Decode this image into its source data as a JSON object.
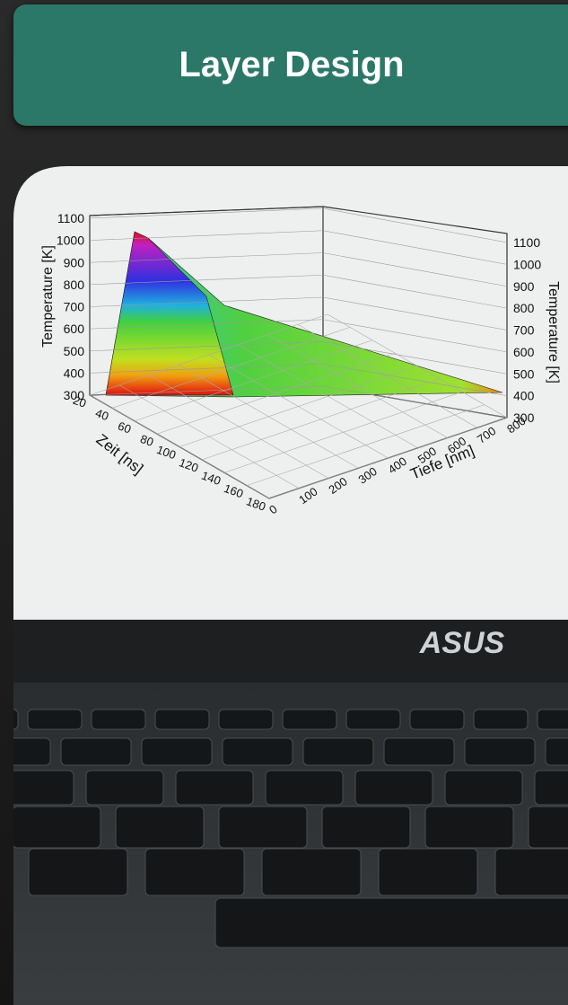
{
  "header": {
    "title": "Layer Design"
  },
  "photo": {
    "screen_plot": {
      "z_label": "Temperature [K]",
      "z_label_right": "Temperature [K]",
      "x_label": "Zeit [ns]",
      "y_label": "Tiefe [nm]",
      "z_ticks": [
        "300",
        "400",
        "500",
        "600",
        "700",
        "800",
        "900",
        "1000",
        "1100"
      ],
      "x_ticks": [
        "20",
        "40",
        "60",
        "80",
        "100",
        "120",
        "140",
        "160",
        "180"
      ],
      "y_ticks": [
        "0",
        "100",
        "200",
        "300",
        "400",
        "500",
        "600",
        "700",
        "800"
      ]
    },
    "brand": "ASUS"
  }
}
